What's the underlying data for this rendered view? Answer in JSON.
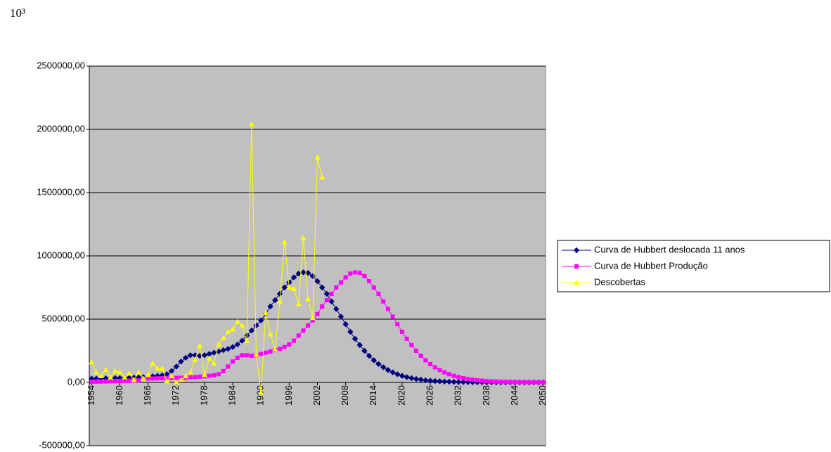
{
  "chart_data": {
    "type": "line",
    "annotation": "10³",
    "categories": [
      "1954",
      null,
      null,
      null,
      null,
      null,
      "1960",
      null,
      null,
      null,
      null,
      null,
      "1966",
      null,
      null,
      null,
      null,
      null,
      "1972",
      null,
      null,
      null,
      null,
      null,
      "1978",
      null,
      null,
      null,
      null,
      null,
      "1984",
      null,
      null,
      null,
      null,
      null,
      "1990",
      null,
      null,
      null,
      null,
      null,
      "1996",
      null,
      null,
      null,
      null,
      null,
      "2002",
      null,
      null,
      null,
      null,
      null,
      "2008",
      null,
      null,
      null,
      null,
      null,
      "2014",
      null,
      null,
      null,
      null,
      null,
      "2020",
      null,
      null,
      null,
      null,
      null,
      "2026",
      null,
      null,
      null,
      null,
      null,
      "2032",
      null,
      null,
      null,
      null,
      null,
      "2038",
      null,
      null,
      null,
      null,
      null,
      "2044",
      null,
      null,
      null,
      null,
      null,
      "2050"
    ],
    "ylim": [
      -500000,
      2500000
    ],
    "yticks": [
      {
        "value": -500000,
        "label": "-500000,00"
      },
      {
        "value": 0,
        "label": "0,00"
      },
      {
        "value": 500000,
        "label": "500000,00"
      },
      {
        "value": 1000000,
        "label": "1000000,00"
      },
      {
        "value": 1500000,
        "label": "1500000,00"
      },
      {
        "value": 2000000,
        "label": "2000000,00"
      },
      {
        "value": 2500000,
        "label": "2500000,00"
      }
    ],
    "grid": true,
    "legend": "right",
    "series": [
      {
        "name": "Curva de Hubbert deslocada 11 anos",
        "color": "#000080",
        "marker": "diamond",
        "values": [
          30000,
          30000,
          31000,
          32000,
          33000,
          34000,
          35000,
          36000,
          37000,
          38000,
          40000,
          42000,
          45000,
          48000,
          52000,
          56000,
          65000,
          90000,
          125000,
          165000,
          195000,
          215000,
          215000,
          210000,
          215000,
          225000,
          235000,
          245000,
          255000,
          265000,
          280000,
          300000,
          330000,
          370000,
          410000,
          450000,
          490000,
          540000,
          600000,
          650000,
          700000,
          750000,
          790000,
          830000,
          860000,
          870000,
          865000,
          840000,
          800000,
          750000,
          700000,
          640000,
          580000,
          520000,
          460000,
          400000,
          345000,
          295000,
          250000,
          210000,
          175000,
          145000,
          120000,
          98000,
          80000,
          65000,
          52000,
          42000,
          34000,
          27000,
          22000,
          17000,
          14000,
          11000,
          8500,
          6800,
          5300,
          4200,
          3300,
          2600,
          2000,
          1600,
          1200,
          950,
          750,
          580,
          450,
          350,
          270,
          210,
          160,
          125,
          95,
          75,
          58,
          45,
          35
        ]
      },
      {
        "name": "Curva de Hubbert Produção",
        "color": "#ff00ff",
        "marker": "square",
        "values": [
          5000,
          6000,
          7000,
          8000,
          9000,
          10000,
          11000,
          12000,
          13000,
          14000,
          15000,
          30000,
          30000,
          31000,
          32000,
          33000,
          34000,
          35000,
          36000,
          37000,
          38000,
          40000,
          42000,
          45000,
          48000,
          52000,
          56000,
          65000,
          90000,
          125000,
          165000,
          195000,
          215000,
          215000,
          210000,
          215000,
          225000,
          235000,
          245000,
          255000,
          265000,
          280000,
          300000,
          330000,
          370000,
          410000,
          450000,
          490000,
          540000,
          600000,
          650000,
          700000,
          750000,
          790000,
          830000,
          860000,
          870000,
          865000,
          840000,
          800000,
          750000,
          700000,
          640000,
          580000,
          520000,
          460000,
          400000,
          345000,
          295000,
          250000,
          210000,
          175000,
          145000,
          120000,
          98000,
          80000,
          65000,
          52000,
          42000,
          34000,
          27000,
          22000,
          17000,
          14000,
          11000,
          8500,
          6800,
          5300,
          4200,
          3300,
          2600,
          2000,
          1600,
          1200,
          950,
          750,
          580
        ]
      },
      {
        "name": "Descobertas",
        "color": "#ffff00",
        "marker": "triangle",
        "values": [
          160000,
          80000,
          50000,
          100000,
          40000,
          90000,
          80000,
          40000,
          70000,
          20000,
          80000,
          30000,
          60000,
          150000,
          110000,
          110000,
          10000,
          50000,
          0,
          20000,
          50000,
          80000,
          180000,
          290000,
          60000,
          190000,
          150000,
          300000,
          350000,
          400000,
          420000,
          480000,
          450000,
          330000,
          2040000,
          220000,
          -80000,
          550000,
          380000,
          260000,
          640000,
          1110000,
          750000,
          740000,
          620000,
          1140000,
          660000,
          510000,
          1780000,
          1620000,
          null,
          null,
          null,
          null,
          null,
          null,
          null,
          null,
          null,
          null,
          null,
          null,
          null,
          null,
          null,
          null,
          null,
          null,
          null,
          null,
          null,
          null,
          null,
          null,
          null,
          null,
          null,
          null,
          null,
          null,
          null,
          null,
          null,
          null,
          null,
          null,
          null,
          null,
          null,
          null,
          null,
          null,
          null,
          null,
          null,
          null,
          null
        ]
      }
    ]
  }
}
